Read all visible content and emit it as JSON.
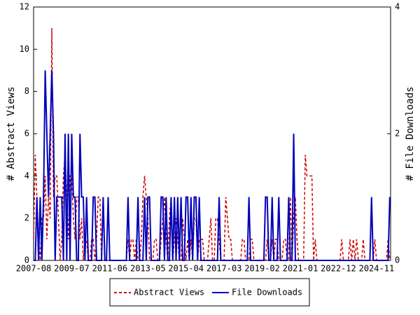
{
  "chart_data": {
    "type": "line",
    "y_label": "# Abstract Views",
    "y2_label": "# File Downloads",
    "categories": [
      "2007-08",
      null,
      null,
      null,
      null,
      null,
      null,
      null,
      null,
      null,
      null,
      null,
      null,
      null,
      null,
      null,
      null,
      null,
      null,
      null,
      null,
      null,
      null,
      "2009-07",
      null,
      null,
      null,
      null,
      null,
      null,
      null,
      null,
      null,
      null,
      null,
      null,
      null,
      null,
      null,
      null,
      null,
      null,
      null,
      null,
      null,
      null,
      "2011-06",
      null,
      null,
      null,
      null,
      null,
      null,
      null,
      null,
      null,
      null,
      null,
      null,
      null,
      null,
      null,
      null,
      null,
      null,
      null,
      null,
      null,
      null,
      "2013-05",
      null,
      null,
      null,
      null,
      null,
      null,
      null,
      null,
      null,
      null,
      null,
      null,
      null,
      null,
      null,
      null,
      null,
      null,
      null,
      null,
      null,
      null,
      "2015-04",
      null,
      null,
      null,
      null,
      null,
      null,
      null,
      null,
      null,
      null,
      null,
      null,
      null,
      null,
      null,
      null,
      null,
      null,
      null,
      null,
      null,
      null,
      "2017-03",
      null,
      null,
      null,
      null,
      null,
      null,
      null,
      null,
      null,
      null,
      null,
      null,
      null,
      null,
      null,
      null,
      null,
      null,
      null,
      null,
      null,
      null,
      "2019-02",
      null,
      null,
      null,
      null,
      null,
      null,
      null,
      null,
      null,
      null,
      null,
      null,
      null,
      null,
      null,
      null,
      null,
      null,
      null,
      null,
      null,
      null,
      "2021-01",
      null,
      null,
      null,
      null,
      null,
      null,
      null,
      null,
      null,
      null,
      null,
      null,
      null,
      null,
      null,
      null,
      null,
      null,
      null,
      null,
      null,
      null,
      "2022-12",
      null,
      null,
      null,
      null,
      null,
      null,
      null,
      null,
      null,
      null,
      null,
      null,
      null,
      null,
      null,
      null,
      null,
      null,
      null,
      null,
      null,
      null,
      "2024-11",
      null,
      null,
      null,
      null,
      null,
      null,
      null,
      null
    ],
    "series": [
      {
        "name": "Abstract Views",
        "color": "#cc0000",
        "style": "dashed",
        "axis": "y",
        "values": [
          1,
          5,
          3,
          1,
          0,
          2,
          2,
          4,
          1,
          3,
          2,
          11,
          3,
          4,
          4,
          2,
          0,
          1,
          4,
          5,
          3,
          1,
          4,
          4,
          2,
          1,
          3,
          3,
          1,
          2,
          0,
          1,
          1,
          0,
          0,
          1,
          1,
          0,
          1,
          3,
          3,
          0,
          0,
          0,
          0,
          0,
          0,
          0,
          0,
          0,
          0,
          0,
          0,
          0,
          0,
          0,
          0,
          1,
          0,
          1,
          1,
          0,
          1,
          0,
          0,
          1,
          3,
          4,
          3,
          2,
          0,
          0,
          0,
          1,
          1,
          0,
          0,
          1,
          2,
          3,
          1,
          0,
          2,
          3,
          0,
          1,
          2,
          1,
          0,
          0,
          2,
          1,
          0,
          1,
          0,
          1,
          0,
          2,
          2,
          0,
          1,
          1,
          1,
          0,
          0,
          0,
          1,
          2,
          0,
          0,
          2,
          2,
          1,
          0,
          0,
          0,
          3,
          2,
          1,
          1,
          0,
          0,
          0,
          0,
          0,
          0,
          1,
          1,
          0,
          0,
          0,
          1,
          1,
          0,
          0,
          0,
          0,
          0,
          0,
          0,
          0,
          1,
          0,
          0,
          1,
          0,
          1,
          1,
          0,
          0,
          0,
          1,
          1,
          0,
          0,
          3,
          0,
          2,
          3,
          1,
          0,
          0,
          0,
          0,
          5,
          4,
          4,
          4,
          4,
          0,
          1,
          0,
          0,
          0,
          0,
          0,
          0,
          0,
          0,
          0,
          0,
          0,
          0,
          0,
          0,
          0,
          1,
          0,
          0,
          0,
          0,
          1,
          0,
          1,
          0,
          1,
          0,
          0,
          0,
          1,
          0,
          0,
          0,
          0,
          0,
          0,
          1,
          0,
          0,
          0,
          0,
          0,
          0,
          0,
          1,
          0
        ]
      },
      {
        "name": "File Downloads",
        "color": "#0000bb",
        "style": "solid",
        "axis": "y2",
        "values": [
          0,
          0,
          1,
          0,
          1,
          0,
          1,
          3,
          2,
          1,
          2,
          3,
          2,
          0,
          1,
          1,
          1,
          1,
          0,
          2,
          0,
          2,
          0,
          2,
          1,
          1,
          0,
          0,
          2,
          1,
          1,
          0,
          1,
          0,
          0,
          0,
          1,
          1,
          0,
          0,
          0,
          0,
          1,
          0,
          0,
          1,
          0,
          0,
          0,
          0,
          0,
          0,
          0,
          0,
          0,
          0,
          0,
          1,
          0,
          0,
          0,
          0,
          0,
          1,
          0,
          0,
          0,
          1,
          0,
          1,
          1,
          0,
          0,
          0,
          0,
          0,
          0,
          1,
          1,
          0,
          1,
          0,
          0,
          1,
          0,
          1,
          0,
          1,
          0,
          1,
          0,
          0,
          1,
          1,
          0,
          1,
          0,
          1,
          1,
          0,
          1,
          0,
          0,
          0,
          0,
          0,
          0,
          0,
          0,
          0,
          0,
          0,
          1,
          0,
          0,
          0,
          0,
          0,
          0,
          0,
          0,
          0,
          0,
          0,
          0,
          0,
          0,
          0,
          0,
          0,
          1,
          0,
          0,
          0,
          0,
          0,
          0,
          0,
          0,
          0,
          1,
          1,
          0,
          0,
          1,
          0,
          0,
          0,
          1,
          0,
          0,
          0,
          0,
          0,
          1,
          0,
          0,
          2,
          0,
          0,
          0,
          0,
          0,
          0,
          0,
          0,
          0,
          0,
          0,
          0,
          0,
          0,
          0,
          0,
          0,
          0,
          0,
          0,
          0,
          0,
          0,
          0,
          0,
          0,
          0,
          0,
          0,
          0,
          0,
          0,
          0,
          0,
          0,
          0,
          0,
          0,
          0,
          0,
          0,
          0,
          0,
          0,
          0,
          0,
          1,
          0,
          0,
          0,
          0,
          0,
          0,
          0,
          0,
          0,
          0,
          1
        ]
      }
    ],
    "ylim": [
      0,
      12
    ],
    "yticks": [
      0,
      2,
      4,
      6,
      8,
      10,
      12
    ],
    "y2lim": [
      0,
      4
    ],
    "y2ticks": [
      0,
      2,
      4
    ],
    "legend": "bottom"
  }
}
